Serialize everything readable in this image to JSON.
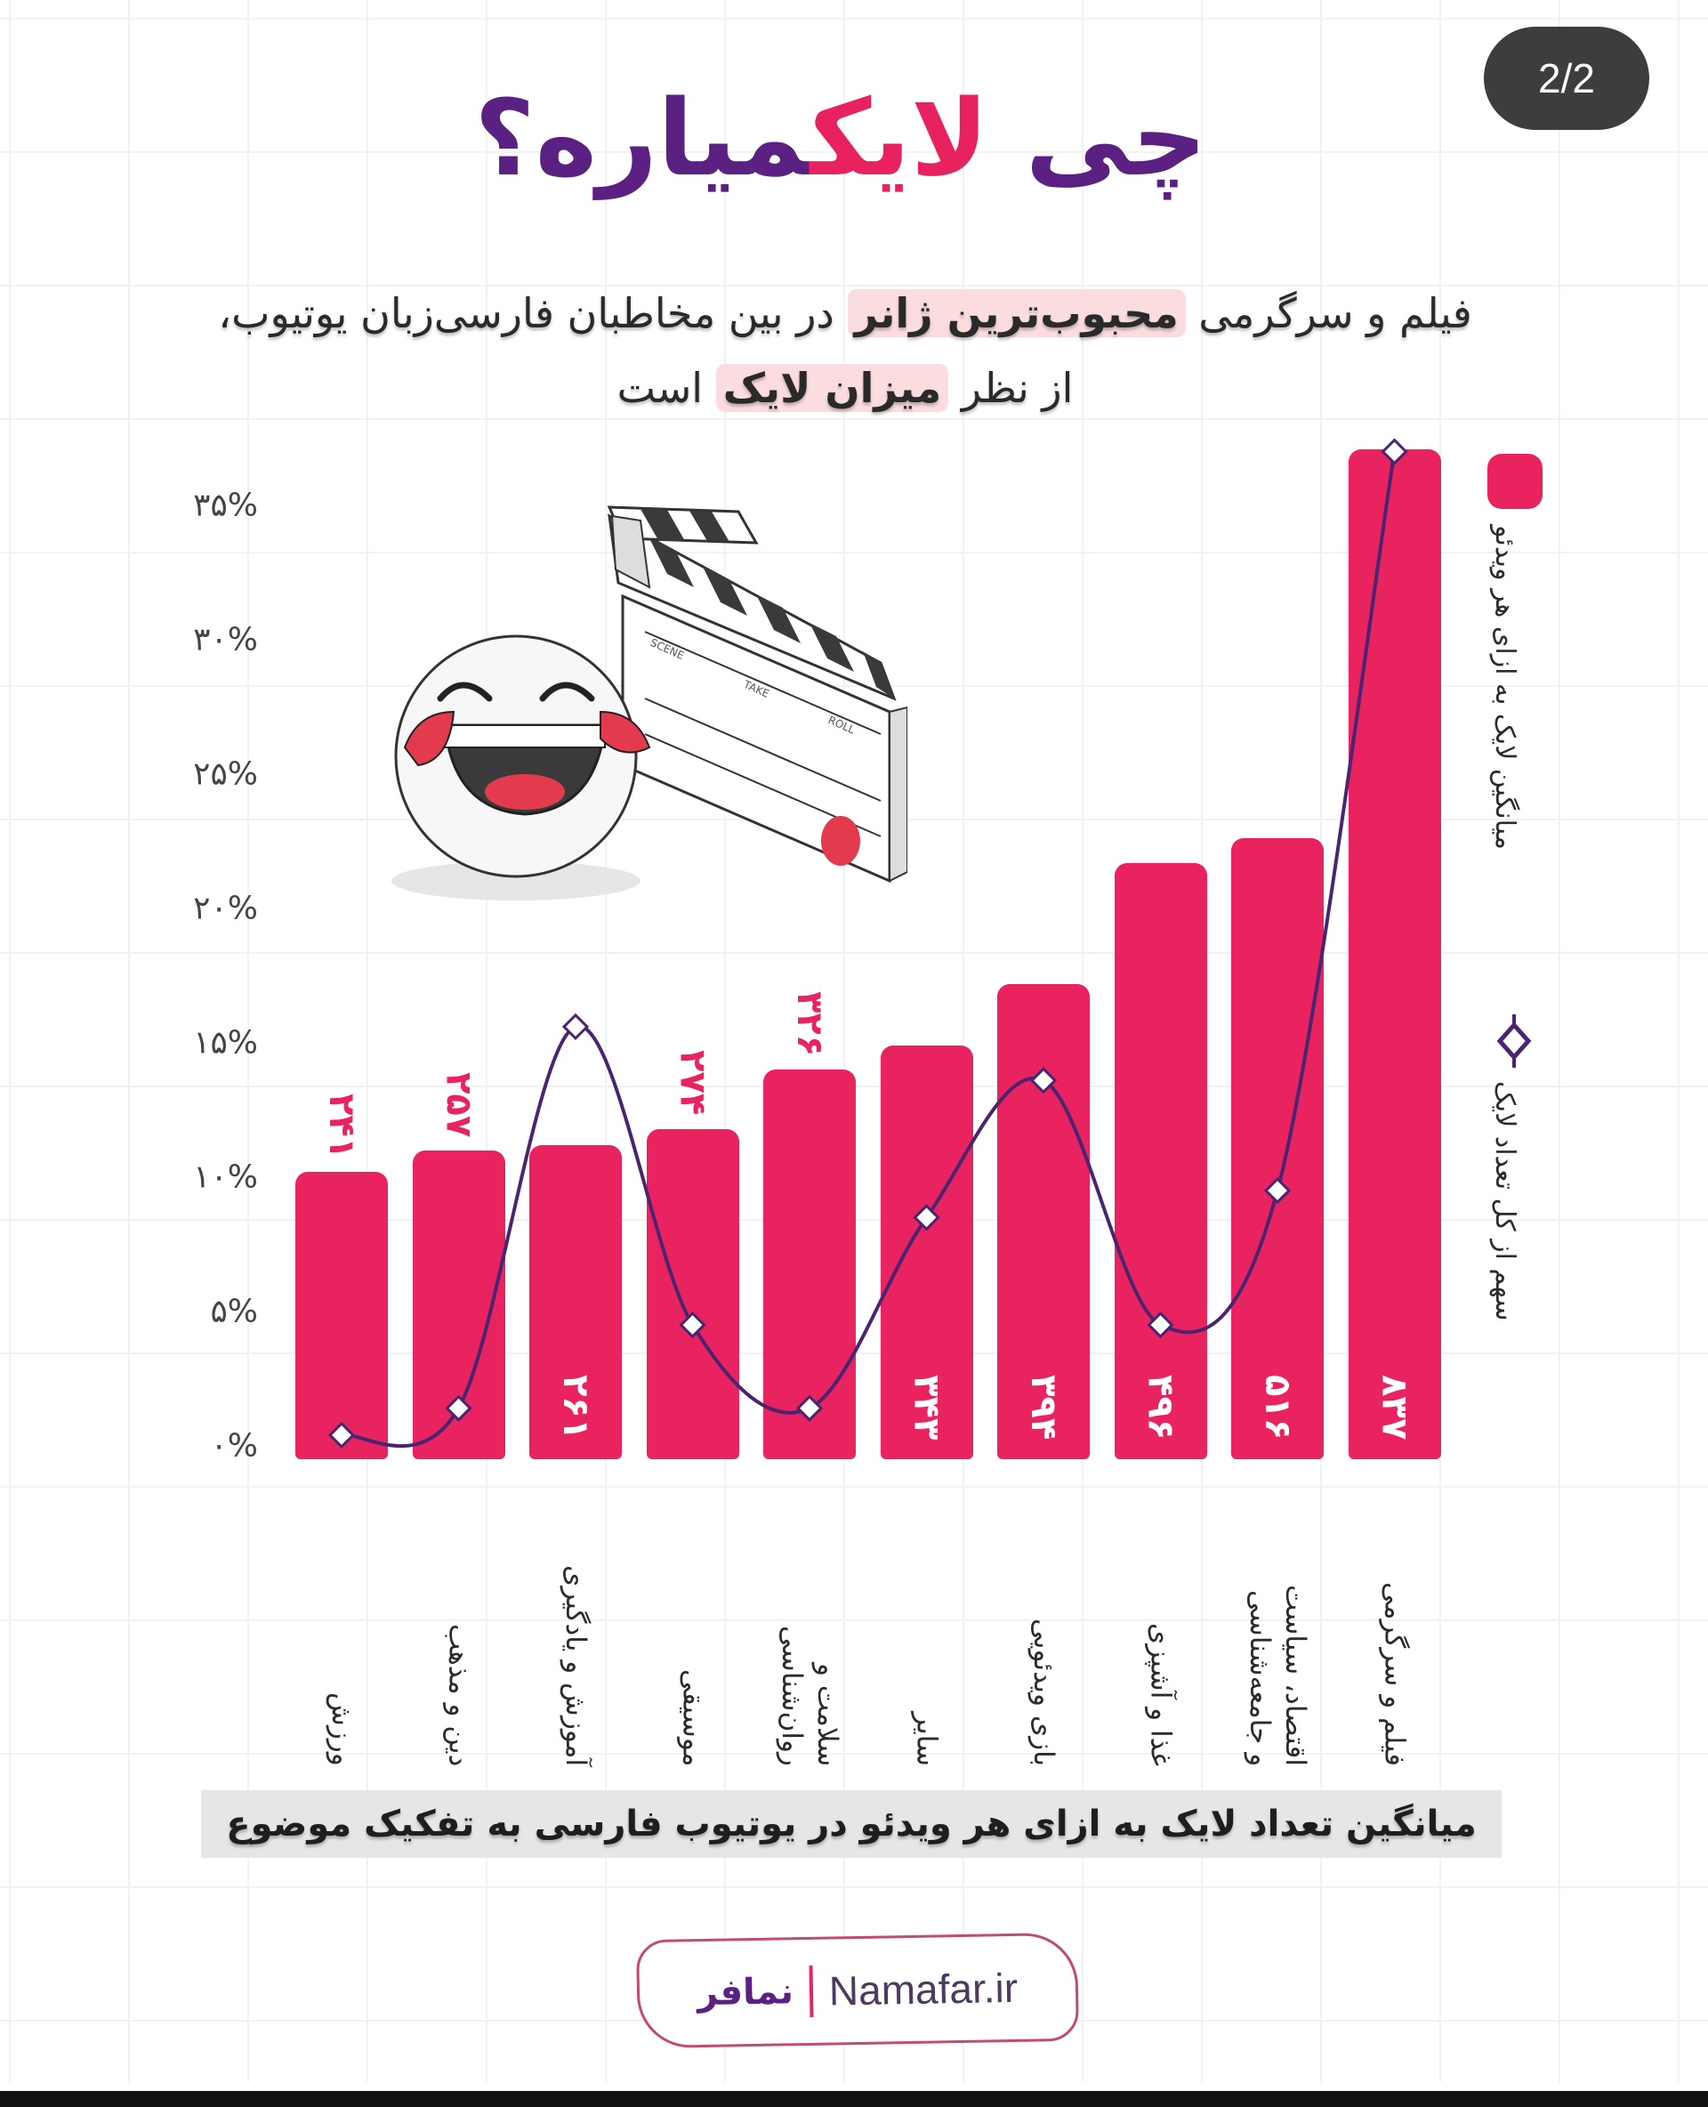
{
  "page_badge": "2/2",
  "title": {
    "part1": "چی",
    "accent": "لایک",
    "part2": "میاره؟"
  },
  "subtitle": {
    "line1_pre": "فیلم و سرگرمی",
    "line1_hl": "محبوب‌ترین ژانر",
    "line1_post": "در بین مخاطبان فارسی‌زبان یوتیوب،",
    "line2_pre": "از نظر",
    "line2_hl": "میزان لایک",
    "line2_post": "است"
  },
  "illustration": {
    "clapper_labels": [
      "SCENE",
      "TAKE",
      "ROLL"
    ]
  },
  "legend": {
    "bars": "میانگین لایک به ازای هر ویدئو",
    "line": "سهم از کل تعداد لایک"
  },
  "caption": "میانگین تعداد لایک به ازای هر ویدئو در یوتیوب فارسی به تفکیک موضوع",
  "footer": {
    "logo_fa": "نمافر",
    "logo_en": "Namafar.ir"
  },
  "colors": {
    "bar": "#e8235f",
    "line": "#4a2470",
    "title_purple": "#5a2182",
    "accent_pink": "#e8225f"
  },
  "chart_data": {
    "type": "bar",
    "title": "میانگین تعداد لایک به ازای هر ویدئو در یوتیوب فارسی به تفکیک موضوع",
    "xlabel": "",
    "ylabel": "",
    "ylim": [
      0,
      37
    ],
    "yticks": [
      "۰%",
      "۵%",
      "۱۰%",
      "۱۵%",
      "۲۰%",
      "۲۵%",
      "۳۰%",
      "۳۵%"
    ],
    "grid": true,
    "legend_position": "right (vertical)",
    "categories": [
      "ورزش",
      "دین و مذهب",
      "آموزش و یادگیری",
      "موسیقی",
      "سلامت و روان‌شناسی",
      "سایر",
      "بازی ویدئویی",
      "غذا و آشپزی",
      "اقتصاد، سیاست و جامعه‌شناسی",
      "فیلم و سرگرمی"
    ],
    "category_lines": [
      [
        "ورزش"
      ],
      [
        "دین و مذهب"
      ],
      [
        "آموزش و یادگیری"
      ],
      [
        "موسیقی"
      ],
      [
        "سلامت و",
        "روان‌شناسی"
      ],
      [
        "سایر"
      ],
      [
        "بازی ویدئویی"
      ],
      [
        "غذا و آشپزی"
      ],
      [
        "اقتصاد، سیاست",
        "و جامعه‌شناسی"
      ],
      [
        "فیلم و سرگرمی"
      ]
    ],
    "series": [
      {
        "name": "میانگین لایک به ازای هر ویدئو",
        "type": "bar",
        "labels": [
          "۲۴۱",
          "۲۵۷",
          "۲۶۱",
          "۲۷۴",
          "۳۲۶",
          "۳۴۳",
          "۳۹۴",
          "۴۹۶",
          "۵۱۶",
          "۸۳۷"
        ],
        "values": [
          241,
          257,
          261,
          274,
          326,
          343,
          394,
          496,
          516,
          837
        ],
        "bar_height_pct_axis": [
          10.2,
          11.0,
          11.2,
          11.8,
          14.0,
          14.9,
          17.2,
          21.7,
          22.6,
          37.1
        ],
        "label_position": [
          "outside",
          "outside",
          "inside",
          "outside",
          "outside",
          "inside",
          "inside",
          "inside",
          "inside",
          "inside"
        ]
      },
      {
        "name": "سهم از کل تعداد لایک",
        "type": "line",
        "unit": "%",
        "values": [
          0.4,
          1.4,
          15.6,
          4.5,
          1.4,
          8.5,
          13.6,
          4.5,
          9.5,
          37.0
        ]
      }
    ]
  }
}
